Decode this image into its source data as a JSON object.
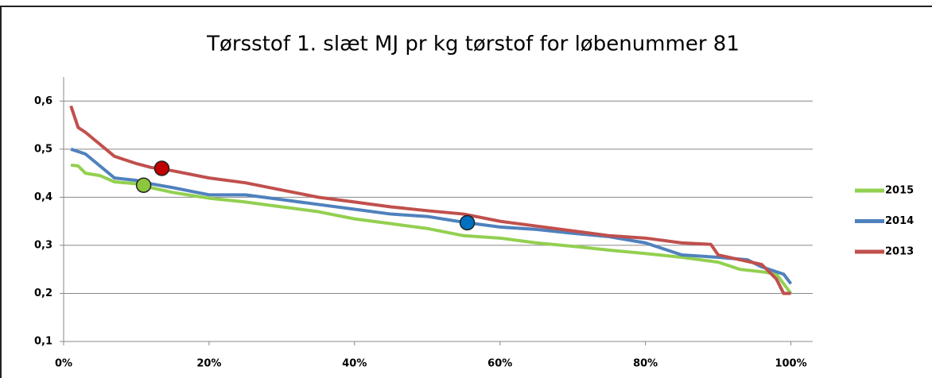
{
  "chart_data": {
    "type": "line",
    "title": "Tørsstof 1. slæt MJ pr kg tørstof for løbenummer 81",
    "xlim": [
      0,
      103
    ],
    "ylim": [
      0.1,
      0.65
    ],
    "grid": true,
    "legend": "right",
    "xticks": [
      {
        "value": 0,
        "label": "0%"
      },
      {
        "value": 20,
        "label": "20%"
      },
      {
        "value": 40,
        "label": "40%"
      },
      {
        "value": 60,
        "label": "60%"
      },
      {
        "value": 80,
        "label": "80%"
      },
      {
        "value": 100,
        "label": "100%"
      }
    ],
    "yticks": [
      {
        "value": 0.1,
        "label": "0,1"
      },
      {
        "value": 0.2,
        "label": "0,2"
      },
      {
        "value": 0.3,
        "label": "0,3"
      },
      {
        "value": 0.4,
        "label": "0,4"
      },
      {
        "value": 0.5,
        "label": "0,5"
      },
      {
        "value": 0.6,
        "label": "0,6"
      }
    ],
    "series": [
      {
        "name": "2015",
        "color": "#92d050",
        "highlight_color": "#8cc63f",
        "x": [
          1,
          2,
          3,
          5,
          7,
          10,
          12,
          15,
          20,
          25,
          30,
          35,
          40,
          45,
          50,
          55,
          60,
          65,
          70,
          75,
          80,
          85,
          90,
          93,
          96,
          98,
          100
        ],
        "values": [
          0.467,
          0.465,
          0.45,
          0.445,
          0.432,
          0.428,
          0.42,
          0.41,
          0.398,
          0.39,
          0.38,
          0.37,
          0.355,
          0.345,
          0.335,
          0.32,
          0.315,
          0.305,
          0.298,
          0.29,
          0.283,
          0.275,
          0.265,
          0.25,
          0.245,
          0.24,
          0.2
        ],
        "highlight": {
          "x": 11,
          "y": 0.425
        }
      },
      {
        "name": "2014",
        "color": "#4f81bd",
        "highlight_color": "#0070c0",
        "x": [
          1,
          3,
          5,
          7,
          10,
          12,
          15,
          20,
          25,
          30,
          35,
          40,
          45,
          50,
          55,
          60,
          65,
          70,
          75,
          80,
          85,
          90,
          94,
          96,
          99,
          100
        ],
        "values": [
          0.5,
          0.49,
          0.465,
          0.44,
          0.435,
          0.428,
          0.42,
          0.405,
          0.405,
          0.395,
          0.385,
          0.375,
          0.365,
          0.36,
          0.348,
          0.338,
          0.333,
          0.325,
          0.318,
          0.305,
          0.28,
          0.275,
          0.27,
          0.255,
          0.24,
          0.22
        ],
        "highlight": {
          "x": 55.5,
          "y": 0.347
        }
      },
      {
        "name": "2013",
        "color": "#c0504d",
        "highlight_color": "#c00000",
        "x": [
          1,
          2,
          3,
          5,
          7,
          10,
          12,
          15,
          20,
          25,
          30,
          35,
          40,
          45,
          50,
          55,
          60,
          65,
          70,
          75,
          80,
          85,
          89,
          90,
          93,
          96,
          98,
          99,
          100
        ],
        "values": [
          0.59,
          0.545,
          0.535,
          0.51,
          0.485,
          0.47,
          0.462,
          0.455,
          0.44,
          0.43,
          0.415,
          0.4,
          0.39,
          0.38,
          0.372,
          0.365,
          0.35,
          0.34,
          0.33,
          0.32,
          0.315,
          0.305,
          0.302,
          0.28,
          0.27,
          0.26,
          0.23,
          0.2,
          0.2
        ],
        "highlight": {
          "x": 13.5,
          "y": 0.46
        }
      }
    ]
  }
}
